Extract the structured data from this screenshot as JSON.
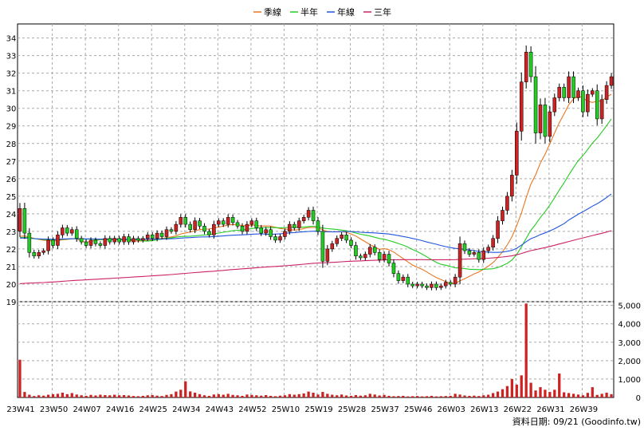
{
  "chart_data": {
    "type": "candlestick",
    "legend": [
      {
        "name": "季線",
        "color": "#e87722"
      },
      {
        "name": "半年",
        "color": "#22cc22"
      },
      {
        "name": "年線",
        "color": "#2255dd"
      },
      {
        "name": "三年",
        "color": "#cc2266"
      }
    ],
    "x_ticks": [
      "23W41",
      "23W50",
      "24W07",
      "24W16",
      "24W25",
      "24W34",
      "24W43",
      "24W52",
      "25W10",
      "25W19",
      "25W28",
      "25W37",
      "25W46",
      "26W03",
      "26W13",
      "26W22",
      "26W31",
      "26W39"
    ],
    "price_axis": {
      "ticks": [
        19,
        20,
        21,
        22,
        23,
        24,
        25,
        26,
        27,
        28,
        29,
        30,
        31,
        32,
        33,
        34
      ],
      "ylim": [
        19,
        34.8
      ]
    },
    "volume_axis": {
      "ticks": [
        "0",
        "1,000",
        "2,000",
        "3,000",
        "4,000",
        "5,000"
      ],
      "ylim": [
        0,
        5200
      ]
    },
    "up_color": "#cc2222",
    "down_color": "#22cc22",
    "source": "資料日期: 09/21  (Goodinfo.tw)",
    "closes": [
      24.3,
      22.9,
      21.8,
      21.6,
      21.8,
      21.9,
      22.5,
      22.2,
      22.8,
      23.2,
      22.9,
      23.1,
      22.6,
      22.4,
      22.2,
      22.5,
      22.3,
      22.2,
      22.6,
      22.4,
      22.6,
      22.4,
      22.7,
      22.4,
      22.6,
      22.5,
      22.6,
      22.8,
      22.6,
      22.9,
      22.7,
      23.1,
      23.0,
      23.4,
      23.8,
      23.4,
      23.1,
      23.6,
      23.3,
      23.0,
      22.8,
      23.4,
      23.6,
      23.4,
      23.8,
      23.5,
      23.3,
      23.0,
      23.4,
      23.6,
      23.2,
      22.9,
      23.1,
      22.7,
      22.5,
      22.7,
      23.0,
      23.4,
      23.2,
      23.6,
      23.8,
      24.2,
      23.6,
      23.0,
      21.3,
      22.0,
      22.3,
      22.6,
      22.8,
      22.5,
      22.2,
      21.6,
      21.5,
      21.7,
      22.1,
      21.8,
      21.4,
      21.7,
      21.2,
      20.6,
      20.2,
      20.4,
      20.0,
      19.9,
      20.0,
      19.9,
      19.8,
      20.0,
      19.8,
      19.9,
      20.1,
      20.0,
      20.4,
      22.3,
      21.9,
      21.7,
      21.8,
      21.4,
      21.9,
      22.1,
      22.6,
      23.6,
      24.2,
      25.0,
      26.2,
      28.7,
      31.5,
      33.2,
      31.8,
      28.6,
      30.2,
      28.4,
      29.8,
      30.6,
      31.2,
      30.6,
      31.8,
      30.6,
      31.0,
      29.8,
      30.8,
      31.0,
      29.4,
      30.5,
      31.3,
      31.8
    ],
    "volumes": [
      2050,
      300,
      150,
      80,
      120,
      100,
      150,
      180,
      200,
      260,
      180,
      240,
      160,
      120,
      90,
      140,
      110,
      150,
      130,
      120,
      150,
      120,
      130,
      110,
      80,
      70,
      90,
      120,
      130,
      100,
      80,
      140,
      180,
      320,
      420,
      880,
      330,
      260,
      180,
      120,
      90,
      160,
      180,
      150,
      200,
      140,
      120,
      90,
      160,
      140,
      120,
      100,
      130,
      90,
      70,
      100,
      120,
      180,
      150,
      180,
      220,
      320,
      260,
      160,
      300,
      200,
      150,
      120,
      160,
      110,
      90,
      130,
      100,
      120,
      200,
      160,
      110,
      140,
      90,
      70,
      80,
      90,
      60,
      70,
      80,
      60,
      70,
      90,
      60,
      70,
      80,
      90,
      200,
      160,
      110,
      90,
      100,
      80,
      120,
      150,
      240,
      320,
      450,
      620,
      1000,
      700,
      1200,
      5100,
      800,
      380,
      560,
      420,
      300,
      420,
      1300,
      280,
      240,
      200,
      160,
      120,
      250,
      560,
      140,
      200,
      260,
      180
    ]
  }
}
